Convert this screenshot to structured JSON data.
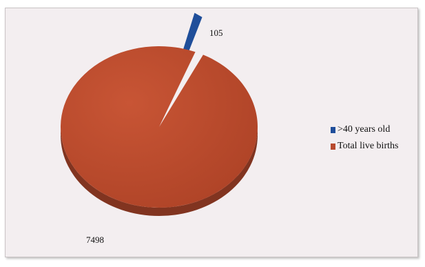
{
  "chart_data": {
    "type": "pie",
    "title": "",
    "series": [
      {
        "name": ">40 years old",
        "value": 105,
        "label": "105",
        "color": "#1f4e9a",
        "exploded": true
      },
      {
        "name": "Total live births",
        "value": 7498,
        "label": "7498",
        "color": "#b84a2e",
        "exploded": false
      }
    ],
    "legend_position": "right",
    "style": "3d"
  }
}
